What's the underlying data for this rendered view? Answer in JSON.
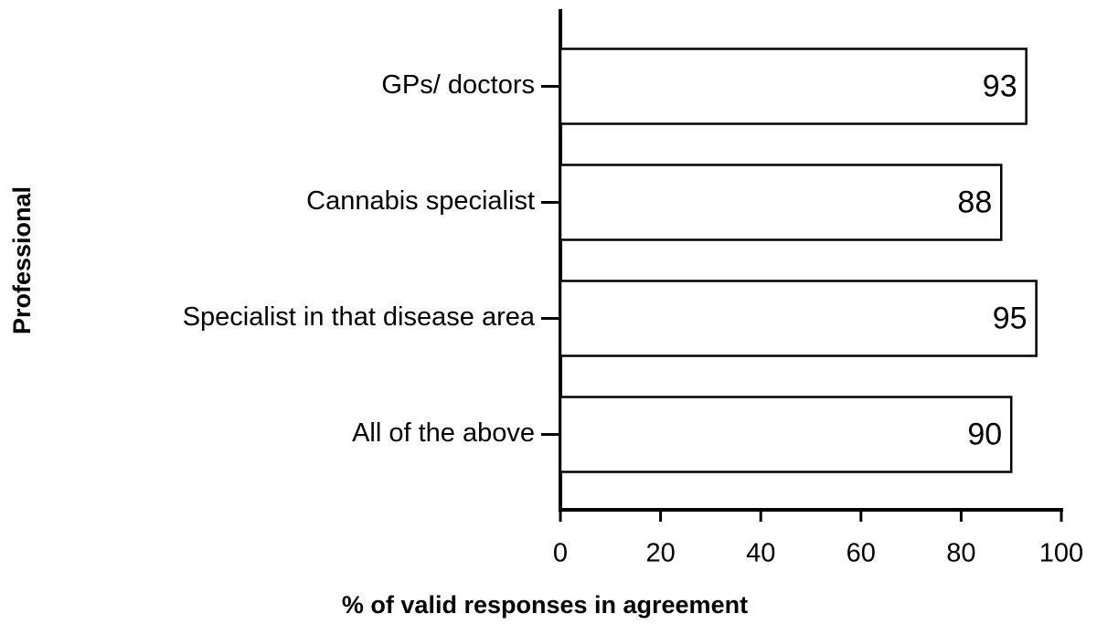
{
  "chart_data": {
    "type": "bar",
    "orientation": "horizontal",
    "x_label": "% of valid responses in agreement",
    "y_label": "Professional",
    "categories": [
      "GPs/ doctors",
      "Cannabis specialist",
      "Specialist in that disease area",
      "All of the above"
    ],
    "values": [
      93,
      88,
      95,
      90
    ],
    "color": "#ffffff",
    "xlim": [
      0,
      100
    ],
    "xticks": [
      0,
      20,
      40,
      60,
      80,
      100
    ],
    "grid": false
  }
}
